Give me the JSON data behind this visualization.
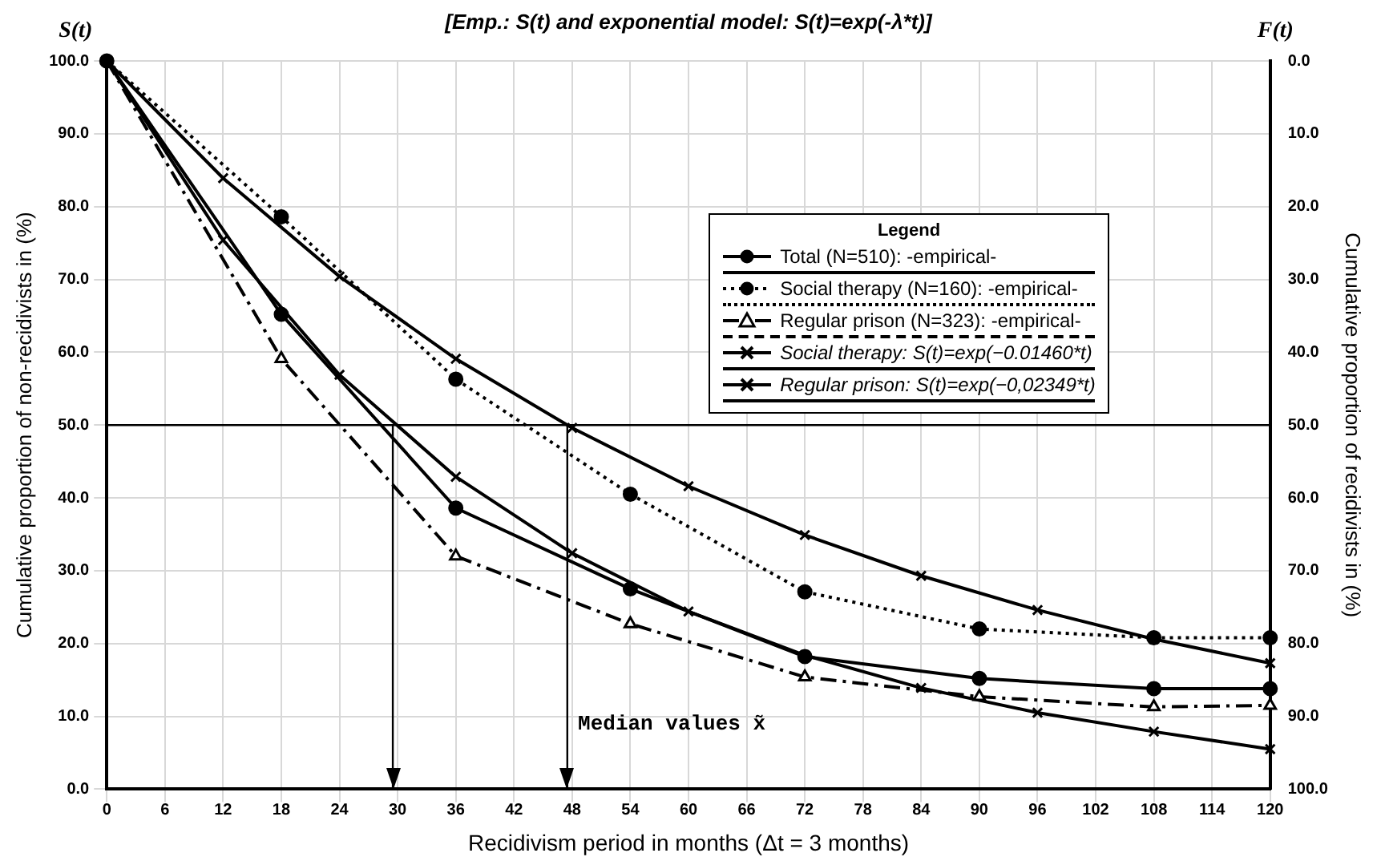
{
  "chart_data": {
    "type": "line",
    "title": "[Emp.: S(t) and exponential model: S(t)=exp(-λ*t)]",
    "xlabel": "Recidivism period in months (Δt = 3 months)",
    "ylabel": "Cumulative proportion of non-recidivists in (%)",
    "y2label": "Cumulative proportion of recidivists in (%)",
    "legend_title": "Legend",
    "legend": "top right",
    "grid": true,
    "annotations": [
      "S(t)",
      "F(t)",
      "Median values x̃"
    ],
    "xlim": [
      0,
      120
    ],
    "xticks": [
      0,
      6,
      12,
      18,
      24,
      30,
      36,
      42,
      48,
      54,
      60,
      66,
      72,
      78,
      84,
      90,
      96,
      102,
      108,
      114,
      120
    ],
    "ylim": [
      0,
      100
    ],
    "yticks": [
      {
        "value": 0,
        "label": "0.0"
      },
      {
        "value": 10,
        "label": "10.0"
      },
      {
        "value": 20,
        "label": "20.0"
      },
      {
        "value": 30,
        "label": "30.0"
      },
      {
        "value": 40,
        "label": "40.0"
      },
      {
        "value": 50,
        "label": "50.0"
      },
      {
        "value": 60,
        "label": "60.0"
      },
      {
        "value": 70,
        "label": "70.0"
      },
      {
        "value": 80,
        "label": "80.0"
      },
      {
        "value": 90,
        "label": "90.0"
      },
      {
        "value": 100,
        "label": "100.0"
      }
    ],
    "y2lim": [
      100,
      0
    ],
    "y2ticks": [
      {
        "value": 0,
        "label": "0.0"
      },
      {
        "value": 10,
        "label": "10.0"
      },
      {
        "value": 20,
        "label": "20.0"
      },
      {
        "value": 30,
        "label": "30.0"
      },
      {
        "value": 40,
        "label": "40.0"
      },
      {
        "value": 50,
        "label": "50.0"
      },
      {
        "value": 60,
        "label": "60.0"
      },
      {
        "value": 70,
        "label": "70.0"
      },
      {
        "value": 80,
        "label": "80.0"
      },
      {
        "value": 90,
        "label": "90.0"
      },
      {
        "value": 100,
        "label": "100.0"
      }
    ],
    "ref_lines": [
      {
        "axis": "y",
        "value": 50,
        "color": "#000000"
      },
      {
        "axis": "x",
        "value": 29.5,
        "color": "#000000"
      },
      {
        "axis": "x",
        "value": 47.5,
        "color": "#000000"
      }
    ],
    "series": [
      {
        "name": "Total (N=510): -empirical-",
        "color": "#000000",
        "marker": "circle",
        "line_style": "solid",
        "x": [
          0,
          18,
          36,
          54,
          72,
          90,
          108,
          120
        ],
        "values": [
          100,
          65.2,
          38.6,
          27.5,
          18.2,
          15.2,
          13.8,
          13.8
        ]
      },
      {
        "name": "Social therapy (N=160): -empirical-",
        "color": "#000000",
        "marker": "circle",
        "line_style": "dotted",
        "x": [
          0,
          18,
          36,
          54,
          72,
          90,
          108,
          120
        ],
        "values": [
          100,
          78.6,
          56.3,
          40.5,
          27.1,
          22,
          20.8,
          20.8
        ]
      },
      {
        "name": "Regular prison (N=323): -empirical-",
        "color": "#000000",
        "marker": "triangle",
        "line_style": "dashed",
        "x": [
          0,
          18,
          36,
          54,
          72,
          90,
          108,
          120
        ],
        "values": [
          100,
          59.1,
          32,
          22.7,
          15.4,
          12.7,
          11.3,
          11.5
        ]
      },
      {
        "name": "Social therapy: S(t)=exp(−0.01460*t)",
        "color": "#000000",
        "marker": "cross",
        "line_style": "solid",
        "x": [
          0,
          12,
          24,
          36,
          48,
          60,
          72,
          84,
          96,
          108,
          120
        ],
        "values": [
          100,
          83.9,
          70.4,
          59.1,
          49.6,
          41.6,
          34.9,
          29.3,
          24.6,
          20.6,
          17.3
        ]
      },
      {
        "name": "Regular prison: S(t)=exp(−0,02349*t)",
        "color": "#000000",
        "marker": "cross",
        "line_style": "solid",
        "x": [
          0,
          12,
          24,
          36,
          48,
          60,
          72,
          84,
          96,
          108,
          120
        ],
        "values": [
          100,
          75.4,
          56.9,
          42.9,
          32.4,
          24.4,
          18.4,
          13.9,
          10.5,
          7.9,
          5.5
        ]
      }
    ]
  }
}
